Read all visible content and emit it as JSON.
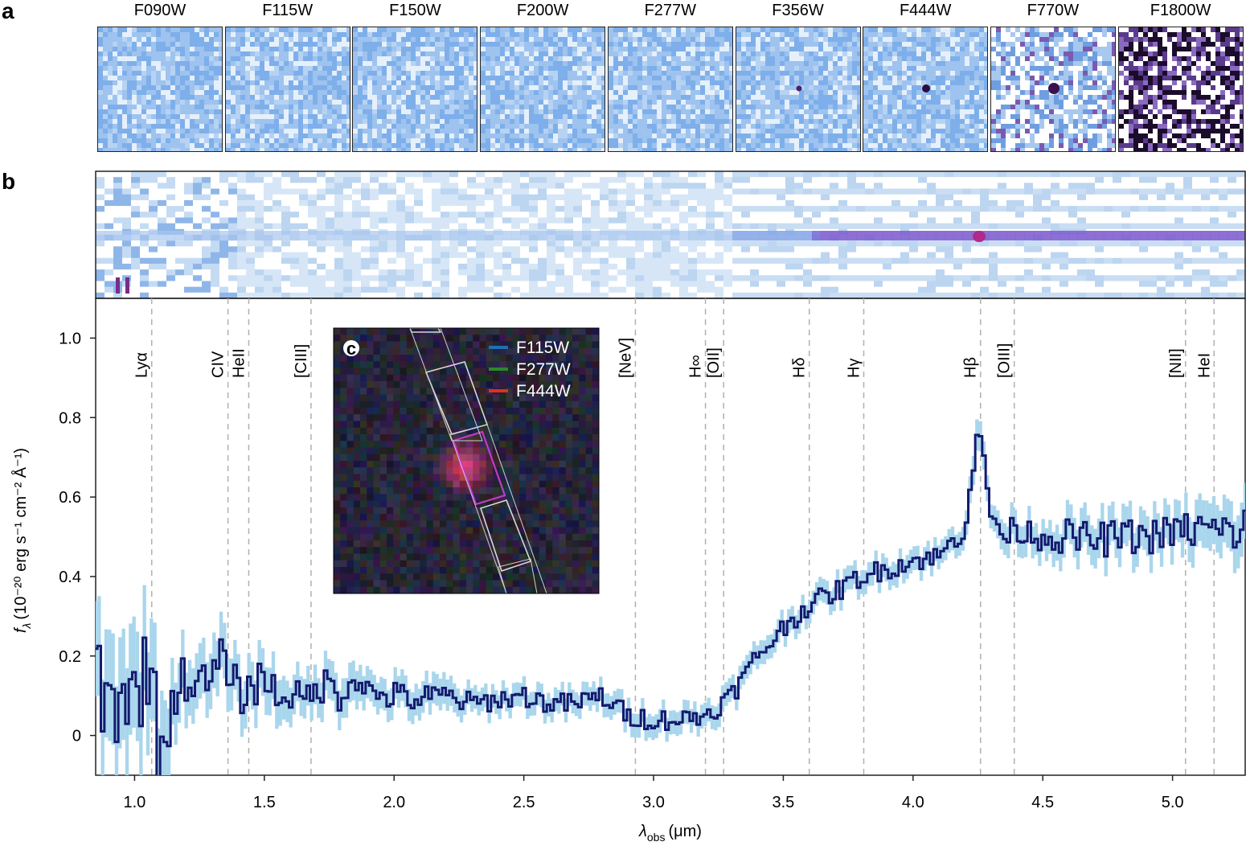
{
  "panels": {
    "a": "a",
    "b": "b",
    "c": "c"
  },
  "filters": [
    "F090W",
    "F115W",
    "F150W",
    "F200W",
    "F277W",
    "F356W",
    "F444W",
    "F770W",
    "F1800W"
  ],
  "inset": {
    "legend": [
      {
        "label": "F115W",
        "color": "#1f6fb5"
      },
      {
        "label": "F277W",
        "color": "#2a8a2a"
      },
      {
        "label": "F444W",
        "color": "#e0301e"
      }
    ]
  },
  "colors": {
    "spectrum": "#141a6e",
    "error_band": "#a9d6ec",
    "line_marker": "#b0b0b0"
  },
  "chart_data": {
    "type": "line",
    "xlabel_main": "λ",
    "xlabel_sub": "obs",
    "xlabel_unit": "(μm)",
    "ylabel_main": "f",
    "ylabel_sub": "λ",
    "ylabel_unit": "(10⁻²⁰ erg s⁻¹ cm⁻² Å⁻¹)",
    "xlim": [
      0.85,
      5.28
    ],
    "ylim": [
      -0.1,
      1.1
    ],
    "xticks": [
      1.0,
      1.5,
      2.0,
      2.5,
      3.0,
      3.5,
      4.0,
      4.5,
      5.0
    ],
    "xtick_labels": [
      "1.0",
      "1.5",
      "2.0",
      "2.5",
      "3.0",
      "3.5",
      "4.0",
      "4.5",
      "5.0"
    ],
    "yticks": [
      0,
      0.2,
      0.4,
      0.6,
      0.8,
      1.0
    ],
    "ytick_labels": [
      "0",
      "0.2",
      "0.4",
      "0.6",
      "0.8",
      "1.0"
    ],
    "emission_lines": [
      {
        "label": "Lyα",
        "x": 1.066
      },
      {
        "label": "CIV",
        "x": 1.36
      },
      {
        "label": "HeII",
        "x": 1.44
      },
      {
        "label": "[CIII]",
        "x": 1.68
      },
      {
        "label": "[NeV]",
        "x": 2.93
      },
      {
        "label": "H∞",
        "x": 3.2
      },
      {
        "label": "[OII]",
        "x": 3.27
      },
      {
        "label": "Hδ",
        "x": 3.6
      },
      {
        "label": "Hγ",
        "x": 3.81
      },
      {
        "label": "Hβ",
        "x": 4.26
      },
      {
        "label": "[OIII]",
        "x": 4.39
      },
      {
        "label": "[NII]",
        "x": 5.05
      },
      {
        "label": "HeI",
        "x": 5.16
      }
    ],
    "series": [
      {
        "x": [
          0.85,
          0.9,
          0.95,
          1.0,
          1.05,
          1.1,
          1.15,
          1.2,
          1.25,
          1.3,
          1.35,
          1.4,
          1.45,
          1.5,
          1.55,
          1.6,
          1.65,
          1.7,
          1.75,
          1.8,
          1.85,
          1.9,
          1.95,
          2.0,
          2.1,
          2.2,
          2.3,
          2.4,
          2.5,
          2.6,
          2.7,
          2.8,
          2.9,
          3.0,
          3.1,
          3.2,
          3.3,
          3.4,
          3.5,
          3.6,
          3.7,
          3.8,
          3.9,
          4.0,
          4.1,
          4.2,
          4.25,
          4.3,
          4.35,
          4.4,
          4.5,
          4.6,
          4.7,
          4.8,
          4.9,
          5.0,
          5.1,
          5.2,
          5.28
        ],
        "values": [
          0.18,
          0.05,
          0.12,
          0.08,
          0.2,
          -0.05,
          0.1,
          0.15,
          0.12,
          0.14,
          0.2,
          0.1,
          0.12,
          0.15,
          0.1,
          0.11,
          0.08,
          0.12,
          0.13,
          0.1,
          0.16,
          0.11,
          0.1,
          0.1,
          0.09,
          0.1,
          0.08,
          0.09,
          0.1,
          0.08,
          0.08,
          0.1,
          0.05,
          0.04,
          0.04,
          0.05,
          0.1,
          0.2,
          0.27,
          0.33,
          0.36,
          0.4,
          0.42,
          0.44,
          0.45,
          0.52,
          0.78,
          0.56,
          0.5,
          0.52,
          0.5,
          0.5,
          0.49,
          0.5,
          0.5,
          0.51,
          0.52,
          0.51,
          0.52
        ],
        "errors": [
          0.12,
          0.14,
          0.14,
          0.14,
          0.13,
          0.12,
          0.08,
          0.07,
          0.07,
          0.07,
          0.07,
          0.06,
          0.06,
          0.06,
          0.06,
          0.05,
          0.05,
          0.05,
          0.05,
          0.05,
          0.05,
          0.04,
          0.04,
          0.04,
          0.04,
          0.04,
          0.03,
          0.03,
          0.03,
          0.03,
          0.03,
          0.03,
          0.03,
          0.03,
          0.03,
          0.03,
          0.03,
          0.03,
          0.03,
          0.03,
          0.03,
          0.03,
          0.03,
          0.03,
          0.03,
          0.03,
          0.04,
          0.03,
          0.04,
          0.04,
          0.04,
          0.05,
          0.05,
          0.05,
          0.05,
          0.05,
          0.06,
          0.06,
          0.07
        ]
      }
    ]
  }
}
